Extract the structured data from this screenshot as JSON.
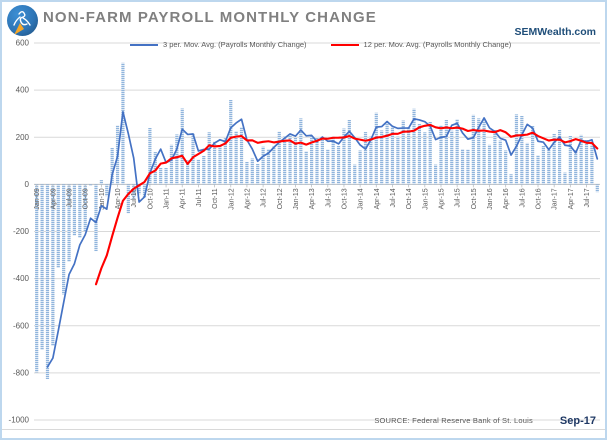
{
  "header": {
    "title": "NON-FARM PAYROLL MONTHLY CHANGE",
    "website": "SEMWealth.com",
    "logo": "sem-wealth-logo"
  },
  "legend": {
    "items": [
      {
        "label": "3 per. Mov. Avg. (Payrolls Monthly Change)",
        "color": "#4472c4"
      },
      {
        "label": "12 per. Mov. Avg. (Payrolls Monthly Change)",
        "color": "#ff0000"
      }
    ]
  },
  "footer": {
    "source": "SOURCE:  Federal Reserve Bank of St. Louis",
    "as_of": "Sep-17"
  },
  "chart_data": {
    "type": "bar",
    "title": "NON-FARM PAYROLL MONTHLY CHANGE",
    "xlabel": "",
    "ylabel": "",
    "ylim": [
      -1000,
      600
    ],
    "y_ticks": [
      600,
      400,
      200,
      0,
      -200,
      -400,
      -600,
      -800,
      -1000
    ],
    "grid": true,
    "bar_color": "#8fb4dc",
    "bar_pattern": "horizontal-white-stripes",
    "tick_labels": [
      "Jan-09",
      "Apr-09",
      "Jul-09",
      "Oct-09",
      "Jan-10",
      "Apr-10",
      "Jul-10",
      "Oct-10",
      "Jan-11",
      "Apr-11",
      "Jul-11",
      "Oct-11",
      "Jan-12",
      "Apr-12",
      "Jul-12",
      "Oct-12",
      "Jan-13",
      "Apr-13",
      "Jul-13",
      "Oct-13",
      "Jan-14",
      "Apr-14",
      "Jul-14",
      "Oct-14",
      "Jan-15",
      "Apr-15",
      "Jul-15",
      "Oct-15",
      "Jan-16",
      "Apr-16",
      "Jul-16",
      "Oct-16",
      "Jan-17",
      "Apr-17",
      "Jul-17"
    ],
    "tick_every_n_bars": 3,
    "categories": [
      "Jan-09",
      "Feb-09",
      "Mar-09",
      "Apr-09",
      "May-09",
      "Jun-09",
      "Jul-09",
      "Aug-09",
      "Sep-09",
      "Oct-09",
      "Nov-09",
      "Dec-09",
      "Jan-10",
      "Feb-10",
      "Mar-10",
      "Apr-10",
      "May-10",
      "Jun-10",
      "Jul-10",
      "Aug-10",
      "Sep-10",
      "Oct-10",
      "Nov-10",
      "Dec-10",
      "Jan-11",
      "Feb-11",
      "Mar-11",
      "Apr-11",
      "May-11",
      "Jun-11",
      "Jul-11",
      "Aug-11",
      "Sep-11",
      "Oct-11",
      "Nov-11",
      "Dec-11",
      "Jan-12",
      "Feb-12",
      "Mar-12",
      "Apr-12",
      "May-12",
      "Jun-12",
      "Jul-12",
      "Aug-12",
      "Sep-12",
      "Oct-12",
      "Nov-12",
      "Dec-12",
      "Jan-13",
      "Feb-13",
      "Mar-13",
      "Apr-13",
      "May-13",
      "Jun-13",
      "Jul-13",
      "Aug-13",
      "Sep-13",
      "Oct-13",
      "Nov-13",
      "Dec-13",
      "Jan-14",
      "Feb-14",
      "Mar-14",
      "Apr-14",
      "May-14",
      "Jun-14",
      "Jul-14",
      "Aug-14",
      "Sep-14",
      "Oct-14",
      "Nov-14",
      "Dec-14",
      "Jan-15",
      "Feb-15",
      "Mar-15",
      "Apr-15",
      "May-15",
      "Jun-15",
      "Jul-15",
      "Aug-15",
      "Sep-15",
      "Oct-15",
      "Nov-15",
      "Dec-15",
      "Jan-16",
      "Feb-16",
      "Mar-16",
      "Apr-16",
      "May-16",
      "Jun-16",
      "Jul-16",
      "Aug-16",
      "Sep-16",
      "Oct-16",
      "Nov-16",
      "Dec-16",
      "Jan-17",
      "Feb-17",
      "Mar-17",
      "Apr-17",
      "May-17",
      "Jun-17",
      "Jul-17",
      "Aug-17",
      "Sep-17"
    ],
    "values": [
      -798,
      -701,
      -826,
      -684,
      -354,
      -467,
      -327,
      -216,
      -227,
      -198,
      -6,
      -283,
      18,
      -50,
      156,
      251,
      516,
      -122,
      -61,
      -42,
      -57,
      241,
      137,
      71,
      70,
      168,
      212,
      322,
      102,
      217,
      106,
      122,
      221,
      183,
      164,
      196,
      360,
      226,
      243,
      96,
      110,
      88,
      160,
      150,
      161,
      225,
      203,
      214,
      197,
      280,
      141,
      203,
      199,
      201,
      149,
      202,
      164,
      237,
      274,
      84,
      144,
      222,
      203,
      304,
      229,
      267,
      243,
      203,
      271,
      243,
      321,
      256,
      221,
      265,
      84,
      251,
      273,
      228,
      277,
      150,
      149,
      295,
      280,
      271,
      168,
      233,
      186,
      144,
      43,
      297,
      291,
      176,
      249,
      124,
      164,
      155,
      216,
      232,
      50,
      207,
      145,
      210,
      189,
      169,
      -33
    ],
    "series": [
      {
        "name": "3 per. Mov. Avg. (Payrolls Monthly Change)",
        "type": "moving-average-line",
        "window": 3,
        "color": "#4472c4",
        "width": 1.7
      },
      {
        "name": "12 per. Mov. Avg. (Payrolls Monthly Change)",
        "type": "moving-average-line",
        "window": 12,
        "color": "#ff0000",
        "width": 2.1
      }
    ],
    "legend_position": "top-inside"
  }
}
